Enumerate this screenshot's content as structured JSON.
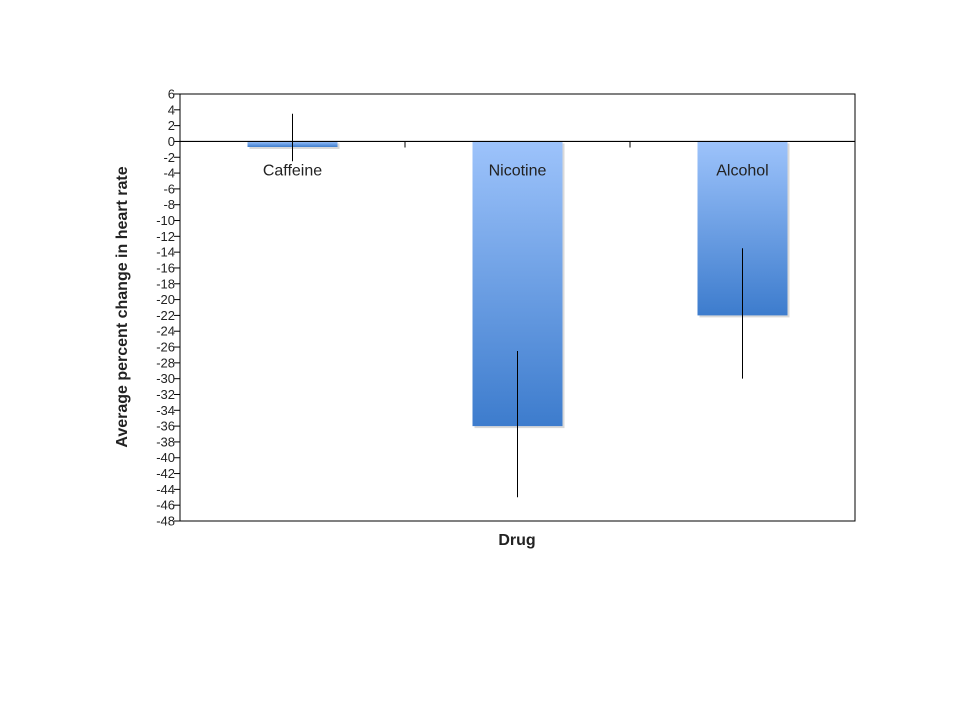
{
  "chart_data": {
    "type": "bar",
    "title": "",
    "xlabel": "Drug",
    "ylabel": "Average percent change in heart rate",
    "ylim": [
      -48,
      6
    ],
    "ytick_step": 2,
    "grid": false,
    "legend": "none",
    "categories": [
      "Caffeine",
      "Nicotine",
      "Alcohol"
    ],
    "series": [
      {
        "values": [
          -0.7,
          -36.0,
          -22.0
        ],
        "error_low": [
          -2.5,
          -45.0,
          -30.0
        ],
        "error_high": [
          3.5,
          -26.5,
          -13.5
        ]
      }
    ],
    "colors": {
      "bar_top": "#9DC3FB",
      "bar_bottom": "#3D7CCD",
      "axis": "#000000",
      "error": "#000000"
    }
  }
}
